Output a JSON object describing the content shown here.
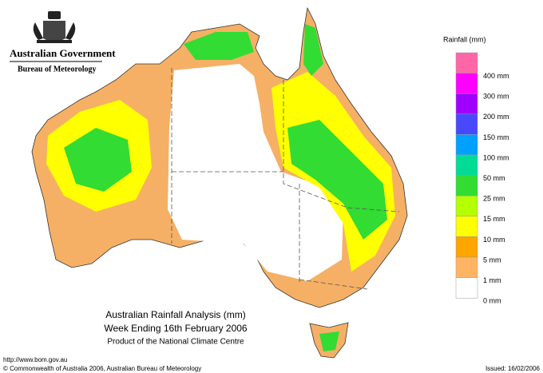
{
  "header": {
    "government": "Australian Government",
    "bureau": "Bureau of Meteorology"
  },
  "legend": {
    "title": "Rainfall (mm)",
    "items": [
      {
        "color": "#ff66a8",
        "label": null
      },
      {
        "color": "#ff00ff",
        "label": "400 mm"
      },
      {
        "color": "#a000ff",
        "label": "300 mm"
      },
      {
        "color": "#4848ff",
        "label": "200 mm"
      },
      {
        "color": "#00a0ff",
        "label": "150 mm"
      },
      {
        "color": "#00dc96",
        "label": "100 mm"
      },
      {
        "color": "#32dc32",
        "label": "50 mm"
      },
      {
        "color": "#b4ff00",
        "label": "25 mm"
      },
      {
        "color": "#ffff00",
        "label": "15 mm"
      },
      {
        "color": "#ffa500",
        "label": "10 mm"
      },
      {
        "color": "#ffb464",
        "label": "5 mm"
      },
      {
        "color": "#ffffff",
        "label": "1 mm"
      }
    ],
    "bottom_label": "0 mm"
  },
  "caption": {
    "title": "Australian Rainfall Analysis (mm)",
    "subtitle": "Week Ending 16th February 2006",
    "credit": "Product of the National Climate Centre"
  },
  "footer": {
    "url": "http://www.bom.gov.au",
    "copyright": "© Commonwealth of Australia 2006, Australian Bureau of Meteorology",
    "issued": "Issued: 16/02/2006"
  }
}
